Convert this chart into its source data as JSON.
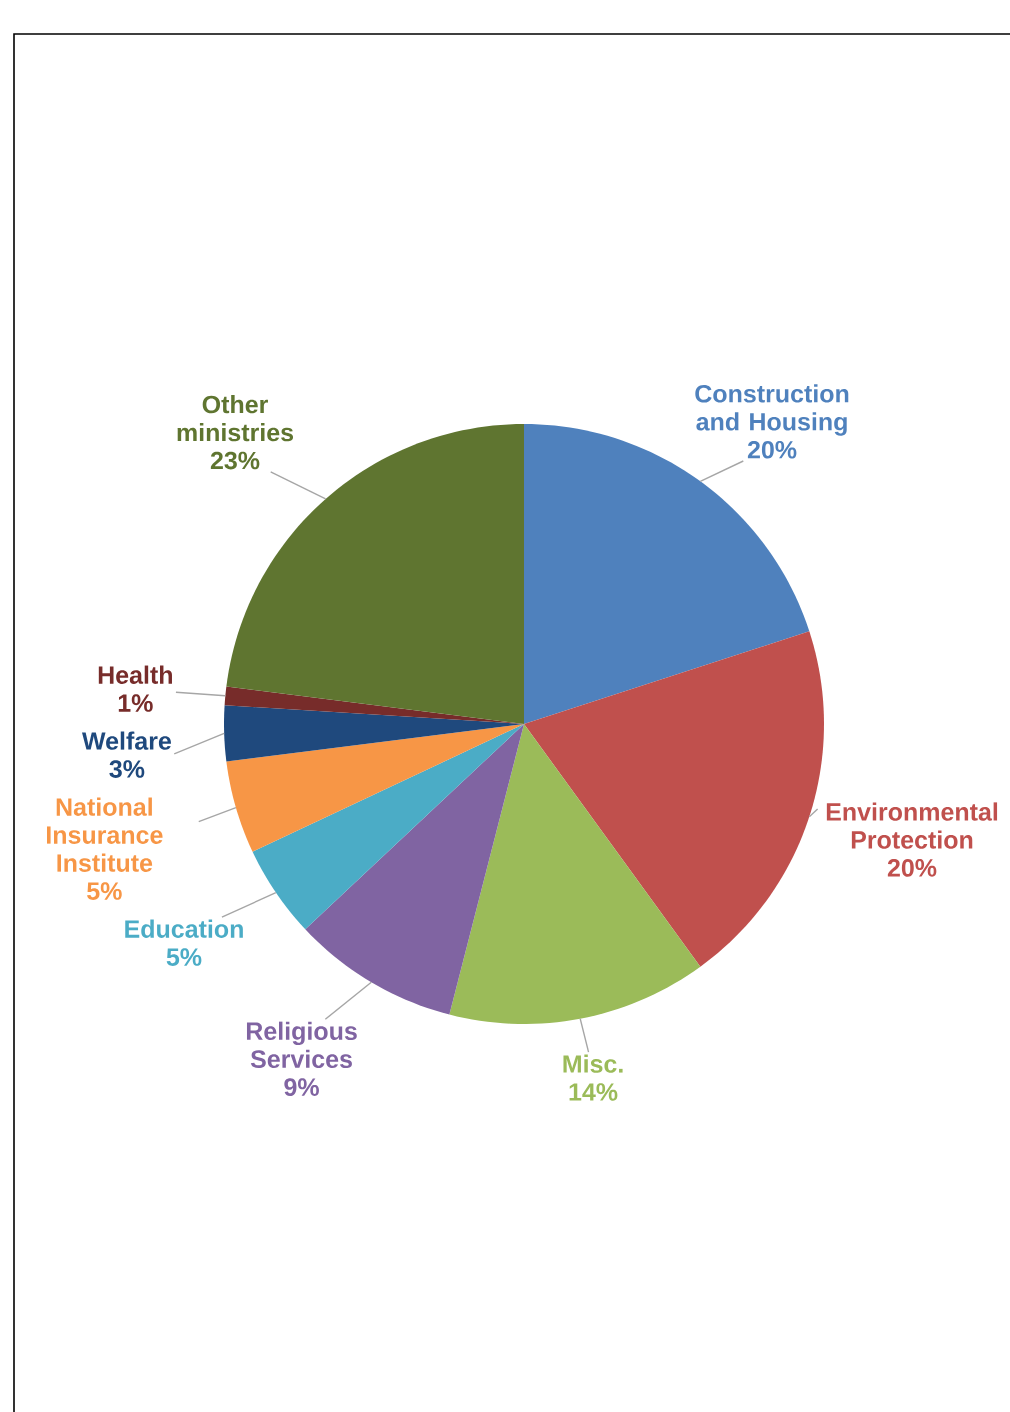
{
  "chart_data": {
    "type": "pie",
    "categories": [
      "Construction and Housing",
      "Environmental Protection",
      "Misc.",
      "Religious Services",
      "Education",
      "National Insurance Institute",
      "Welfare",
      "Health",
      "Other ministries"
    ],
    "values": [
      20,
      20,
      14,
      9,
      5,
      5,
      3,
      1,
      23
    ],
    "value_labels": [
      "20%",
      "20%",
      "14%",
      "9%",
      "5%",
      "5%",
      "3%",
      "1%",
      "23%"
    ],
    "colors": [
      "#4f81bd",
      "#c0504d",
      "#9bbb59",
      "#8064a2",
      "#4bacc6",
      "#f79646",
      "#1f497d",
      "#772c2a",
      "#5f7530"
    ]
  }
}
